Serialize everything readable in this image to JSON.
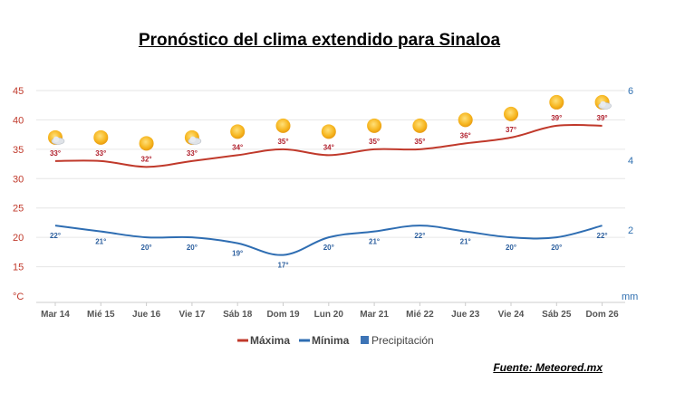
{
  "page": {
    "title": "Pronóstico del clima extendido para Sinaloa",
    "source": "Fuente: Meteored.mx"
  },
  "chart_data": {
    "type": "line",
    "categories": [
      "Mar 14",
      "Mié 15",
      "Jue 16",
      "Vie 17",
      "Sáb 18",
      "Dom 19",
      "Lun 20",
      "Mar 21",
      "Mié 22",
      "Jue 23",
      "Vie 24",
      "Sáb 25",
      "Dom 26"
    ],
    "series": [
      {
        "name": "Máxima",
        "values": [
          33,
          33,
          32,
          33,
          34,
          35,
          34,
          35,
          35,
          36,
          37,
          39,
          39
        ],
        "labels": [
          "33°",
          "33°",
          "32°",
          "33°",
          "34°",
          "35°",
          "34°",
          "35°",
          "35°",
          "36°",
          "37°",
          "39°",
          "39°"
        ],
        "color": "#c0392b"
      },
      {
        "name": "Mínima",
        "values": [
          22,
          21,
          20,
          20,
          19,
          17,
          20,
          21,
          22,
          21,
          20,
          20,
          22
        ],
        "labels": [
          "22°",
          "21°",
          "20°",
          "20°",
          "19°",
          "17°",
          "20°",
          "21°",
          "22°",
          "21°",
          "20°",
          "20°",
          "22°"
        ],
        "color": "#2e6db2"
      }
    ],
    "legend_extra": {
      "name": "Precipitación",
      "color": "#3d74b6"
    },
    "y_left": {
      "unit": "°C",
      "ticks": [
        "45",
        "40",
        "35",
        "30",
        "25",
        "20",
        "15"
      ],
      "ylim": [
        10,
        45
      ]
    },
    "y_right": {
      "unit": "mm",
      "ticks": [
        "6",
        "4",
        "2"
      ]
    },
    "icons": [
      "partly-cloudy-sun-icon",
      "sun-icon",
      "sun-icon",
      "partly-cloudy-sun-icon",
      "sun-icon",
      "sun-icon",
      "sun-icon",
      "sun-icon",
      "sun-icon",
      "sun-icon",
      "sun-icon",
      "sun-icon",
      "partly-cloudy-sun-icon"
    ],
    "grid": true,
    "legend_position": "bottom"
  }
}
